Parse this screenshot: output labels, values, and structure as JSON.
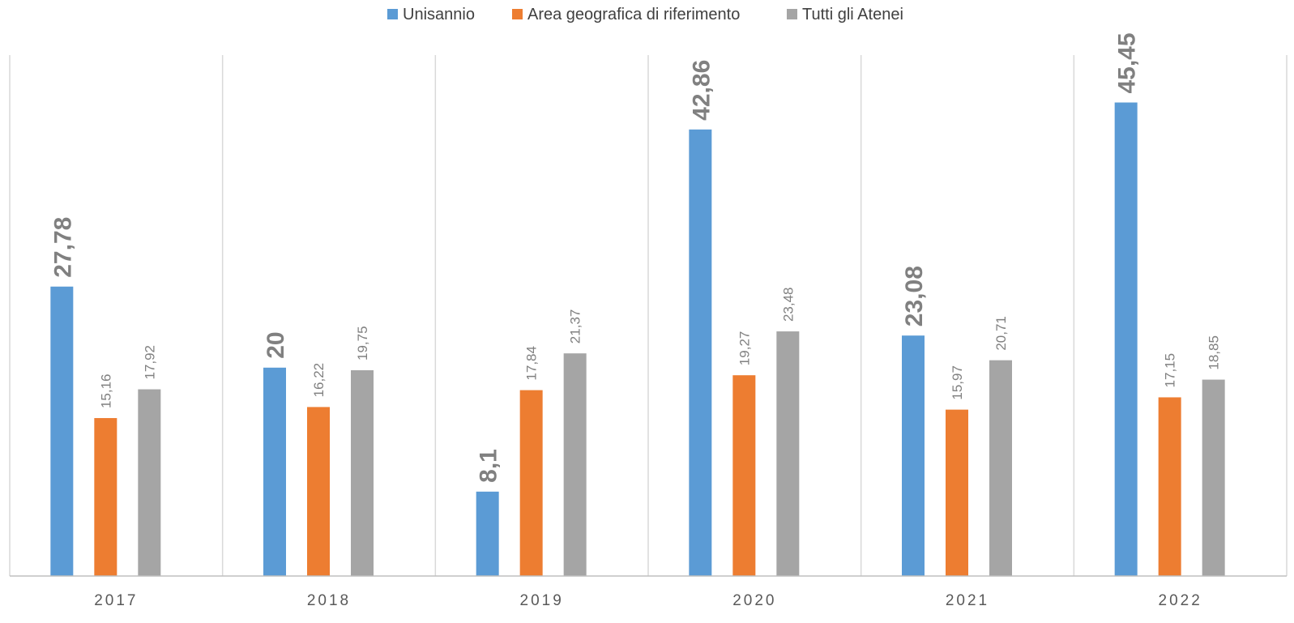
{
  "chart_data": {
    "type": "bar",
    "categories": [
      "2017",
      "2018",
      "2019",
      "2020",
      "2021",
      "2022"
    ],
    "series": [
      {
        "name": "Unisannio",
        "values": [
          27.78,
          20,
          8.1,
          42.86,
          23.08,
          45.45
        ],
        "labels": [
          "27,78",
          "20",
          "8,1",
          "42,86",
          "23,08",
          "45,45"
        ],
        "color": "#5B9BD5"
      },
      {
        "name": "Area geografica di riferimento",
        "values": [
          15.16,
          16.22,
          17.84,
          19.27,
          15.97,
          17.15
        ],
        "labels": [
          "15,16",
          "16,22",
          "17,84",
          "19,27",
          "15,97",
          "17,15"
        ],
        "color": "#ED7D31"
      },
      {
        "name": "Tutti gli Atenei",
        "values": [
          17.92,
          19.75,
          21.37,
          23.48,
          20.71,
          18.85
        ],
        "labels": [
          "17,92",
          "19,75",
          "21,37",
          "23,48",
          "20,71",
          "18,85"
        ],
        "color": "#A5A5A5"
      }
    ],
    "ylim": [
      0,
      50
    ],
    "grid": "vertical category separators",
    "legend": "top-center",
    "label_color": "#808080",
    "separator_color": "#D9D9D9",
    "axis_color": "#BFBFBF",
    "tick_color": "#595959"
  }
}
